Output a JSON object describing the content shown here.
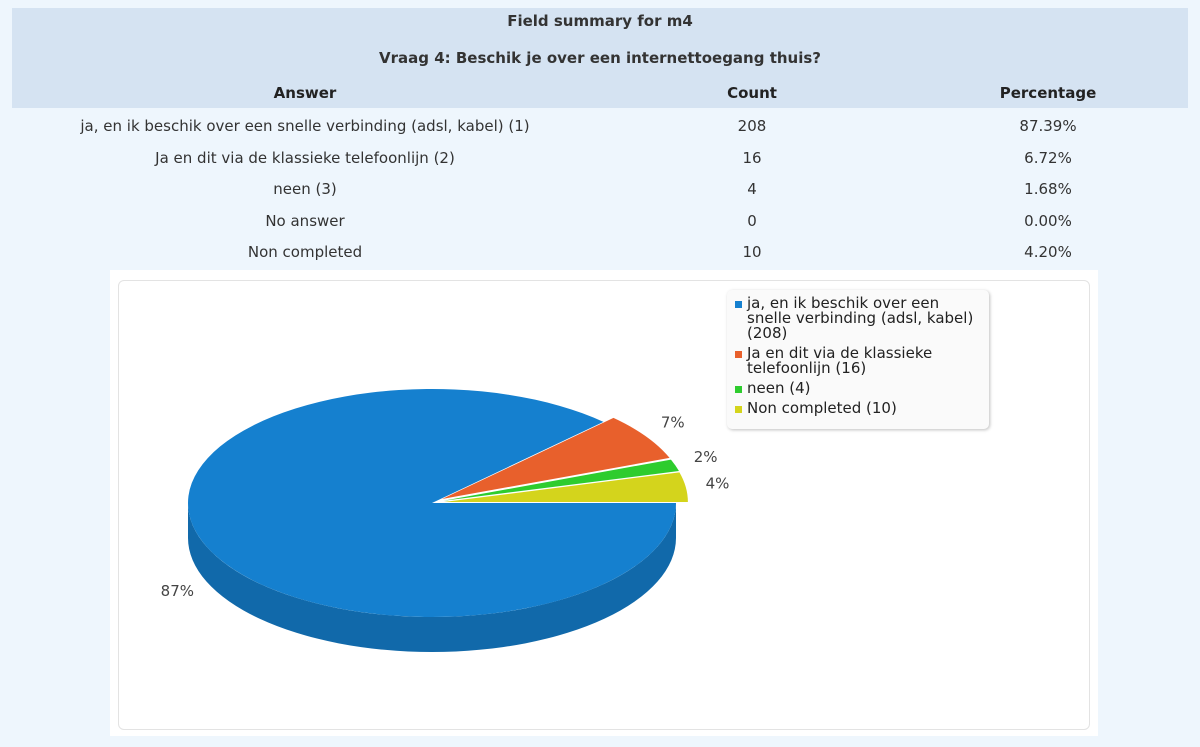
{
  "header": {
    "title": "Field summary for m4",
    "question": "Vraag 4: Beschik je over een internettoegang thuis?"
  },
  "table": {
    "columns": [
      "Answer",
      "Count",
      "Percentage"
    ],
    "rows": [
      [
        "ja, en ik beschik over een snelle verbinding (adsl, kabel) (1)",
        208,
        "87.39%"
      ],
      [
        "Ja en dit via de klassieke telefoonlijn (2)",
        16,
        "6.72%"
      ],
      [
        "neen (3)",
        4,
        "1.68%"
      ],
      [
        "No answer",
        0,
        "0.00%"
      ],
      [
        "Non completed",
        10,
        "4.20%"
      ]
    ]
  },
  "chart_data": {
    "type": "pie",
    "categories": [
      "ja, en ik beschik over een snelle verbinding (adsl, kabel) (208)",
      "Ja en dit via de klassieke telefoonlijn (16)",
      "neen (4)",
      "Non completed (10)"
    ],
    "values": [
      87.39,
      6.72,
      1.68,
      4.2
    ],
    "value_labels": [
      "87%",
      "7%",
      "2%",
      "4%"
    ],
    "colors": [
      "#1580cf",
      "#e8602c",
      "#2ecc2e",
      "#d4d41c"
    ]
  }
}
